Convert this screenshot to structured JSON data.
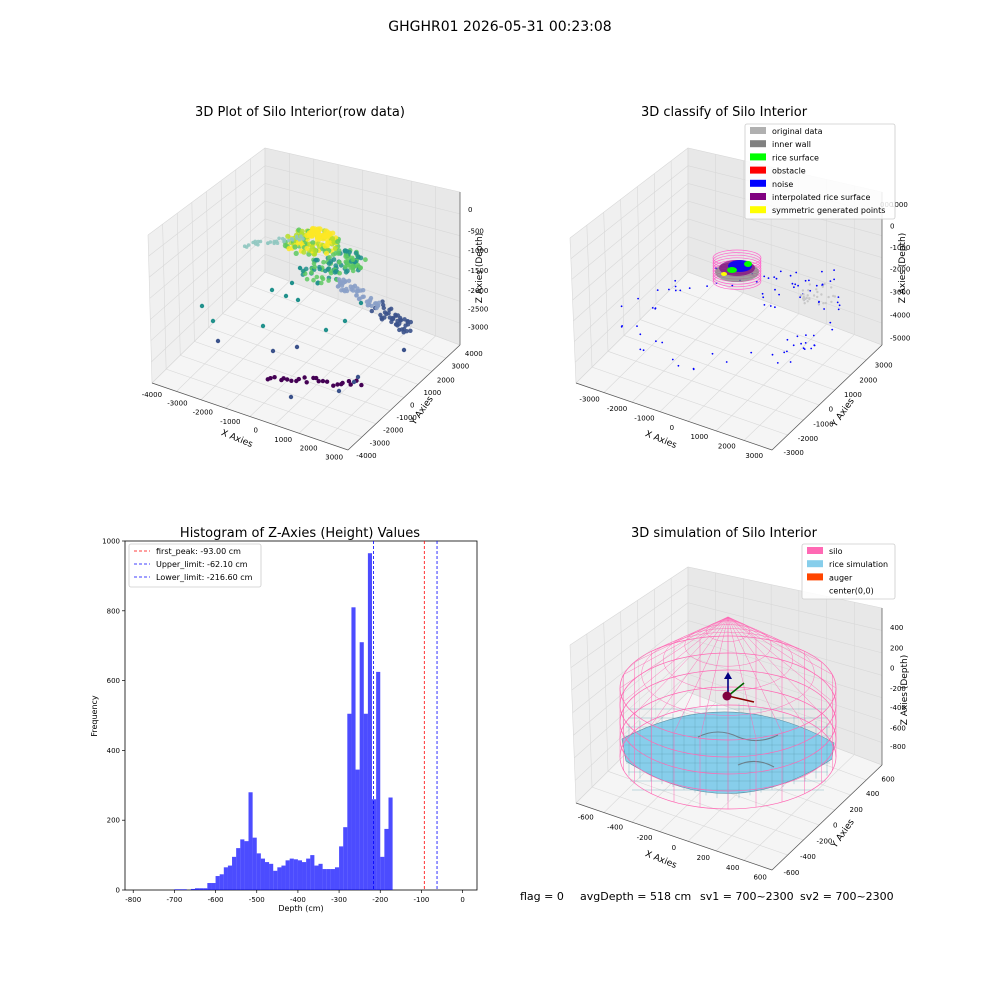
{
  "figure_title": "GHGHR01 2026-05-31 00:23:08",
  "footer": {
    "flag": "flag = 0",
    "avg_depth": "avgDepth = 518 cm",
    "sv1": "sv1 = 700~2300",
    "sv2": "sv2 = 700~2300"
  },
  "chart_data": [
    {
      "type": "scatter",
      "title": "3D Plot of Silo Interior(row data)",
      "xlabel": "X Axies",
      "ylabel": "Y Axies",
      "zlabel": "Z Axies (Depth)",
      "x_ticks": [
        "-4000",
        "-3000",
        "-2000",
        "-1000",
        "0",
        "1000",
        "2000",
        "3000"
      ],
      "y_ticks": [
        "-4000",
        "-3000",
        "-2000",
        "-1000",
        "0",
        "1000",
        "2000",
        "3000",
        "4000"
      ],
      "z_ticks": [
        "-3000",
        "-2500",
        "-2000",
        "-1500",
        "-1000",
        "-500",
        "0"
      ],
      "xlim": [
        -4000,
        3500
      ],
      "ylim": [
        -4000,
        4000
      ],
      "zlim": [
        -3500,
        0
      ],
      "colormap": "viridis by depth",
      "grid": true
    },
    {
      "type": "scatter",
      "title": "3D classify of Silo Interior",
      "xlabel": "X Axies",
      "ylabel": "Y Axies",
      "zlabel": "Z Axies (Depth)",
      "x_ticks": [
        "-3000",
        "-2000",
        "-1000",
        "0",
        "1000",
        "2000",
        "3000"
      ],
      "y_ticks": [
        "-3000",
        "-2000",
        "-1000",
        "0",
        "1000",
        "2000",
        "3000"
      ],
      "z_ticks": [
        "-5000",
        "-4000",
        "-3000",
        "-2000",
        "-1000",
        "0",
        "1000"
      ],
      "z_tick_partial": "000",
      "legend_position": "top-right",
      "legend": [
        {
          "label": "original data",
          "color": "#b0b0b0"
        },
        {
          "label": "inner wall",
          "color": "#808080"
        },
        {
          "label": "rice surface",
          "color": "#00ff00"
        },
        {
          "label": "obstacle",
          "color": "#ff0000"
        },
        {
          "label": "noise",
          "color": "#0000ff"
        },
        {
          "label": "interpolated rice surface",
          "color": "#800080"
        },
        {
          "label": "symmetric generated points",
          "color": "#ffff00"
        }
      ],
      "grid": true
    },
    {
      "type": "bar",
      "title": "Histogram of Z-Axies (Height) Values",
      "xlabel": "Depth (cm)",
      "ylabel": "Frequency",
      "xlim": [
        -820,
        35
      ],
      "ylim": [
        0,
        1000
      ],
      "x_ticks": [
        -800,
        -700,
        -600,
        -500,
        -400,
        -300,
        -200,
        -100,
        0
      ],
      "y_ticks": [
        0,
        200,
        400,
        600,
        800,
        1000
      ],
      "bar_color": "#0000ff",
      "bar_opacity": 0.7,
      "bins": {
        "left": [
          -700,
          -690,
          -680,
          -670,
          -660,
          -650,
          -640,
          -630,
          -620,
          -610,
          -600,
          -590,
          -580,
          -570,
          -560,
          -550,
          -540,
          -530,
          -520,
          -510,
          -500,
          -490,
          -480,
          -470,
          -460,
          -450,
          -440,
          -430,
          -420,
          -410,
          -400,
          -390,
          -380,
          -370,
          -360,
          -350,
          -340,
          -330,
          -320,
          -310,
          -300,
          -290,
          -280,
          -270,
          -260,
          -250,
          -240,
          -230,
          -220,
          -210,
          -200,
          -190,
          -180,
          -170,
          -160,
          -150,
          -140,
          -130,
          -120,
          -110,
          -100,
          -90,
          -80,
          -70,
          -60,
          -50,
          -40,
          -30,
          -20,
          -10
        ],
        "width": 10
      },
      "values": [
        2,
        2,
        2,
        0,
        3,
        5,
        5,
        5,
        20,
        20,
        40,
        45,
        65,
        70,
        95,
        120,
        145,
        140,
        280,
        150,
        105,
        90,
        80,
        75,
        55,
        65,
        70,
        85,
        90,
        88,
        85,
        80,
        90,
        100,
        70,
        75,
        60,
        60,
        60,
        65,
        125,
        180,
        505,
        810,
        345,
        710,
        505,
        965,
        260,
        625,
        95,
        175,
        265,
        0,
        0,
        0,
        0,
        0,
        0,
        0,
        0,
        0,
        0,
        0,
        0,
        0,
        0,
        0,
        0,
        0
      ],
      "vlines": [
        {
          "label": "first_peak: -93.00 cm",
          "x": -93.0,
          "color": "#ff0000"
        },
        {
          "label": "Upper_limit: -62.10 cm",
          "x": -62.1,
          "color": "#0000ff"
        },
        {
          "label": "Lower_limit: -216.60 cm",
          "x": -216.6,
          "color": "#0000ff"
        }
      ],
      "legend_position": "top-left"
    },
    {
      "type": "surface",
      "title": "3D simulation of Silo Interior",
      "xlabel": "X Axies",
      "ylabel": "Y Axies",
      "zlabel": "Z Axies (Depth)",
      "x_ticks": [
        "-600",
        "-400",
        "-200",
        "0",
        "200",
        "400",
        "600"
      ],
      "y_ticks": [
        "-600",
        "-400",
        "-200",
        "0",
        "200",
        "400",
        "600"
      ],
      "z_ticks": [
        "-800",
        "-600",
        "-400",
        "-200",
        "0",
        "200",
        "400"
      ],
      "legend_position": "top-right",
      "legend": [
        {
          "label": "silo",
          "color": "#ff69b4"
        },
        {
          "label": "rice simulation",
          "color": "#87ceeb"
        },
        {
          "label": "auger",
          "color": "#ff4500"
        },
        {
          "label": "center(0,0)",
          "color": ""
        }
      ],
      "grid": true
    }
  ]
}
